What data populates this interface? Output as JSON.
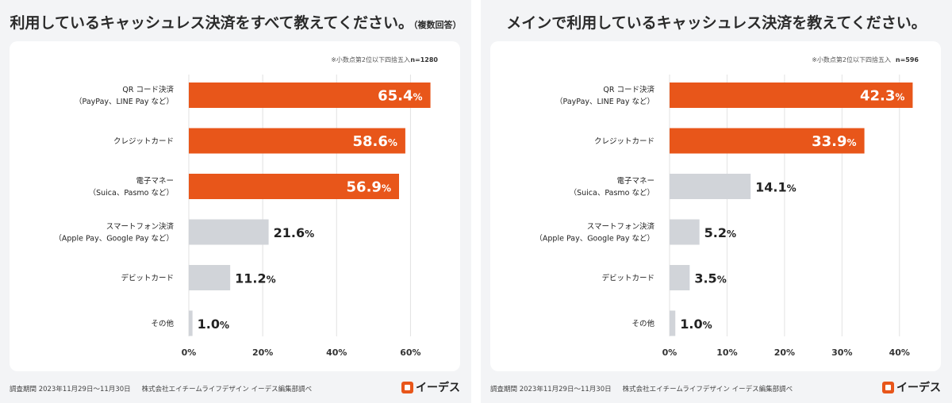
{
  "brand": {
    "name": "イーデス",
    "icon": "edesu-logo-icon",
    "accent": "#e8561a",
    "gray": "#d1d4d9"
  },
  "footer": {
    "period": "調査期間 2023年11月29日〜11月30日",
    "source": "株式会社エイチームライフデザイン イーデス編集部調べ"
  },
  "panels": [
    {
      "title": "利用しているキャッシュレス決済をすべて教えてください。",
      "subtitle": "（複数回答）",
      "note": "※小数点第2位以下四捨五入",
      "n": "n=1280"
    },
    {
      "title": "メインで利用しているキャッシュレス決済を教えてください。",
      "subtitle": "",
      "note": "※小数点第2位以下四捨五入",
      "n": "n=596"
    }
  ],
  "chart_data": [
    {
      "type": "bar",
      "orientation": "horizontal",
      "categories": [
        [
          "QR コード決済",
          "（PayPay、LINE Pay など）"
        ],
        [
          "クレジットカード"
        ],
        [
          "電子マネー",
          "（Suica、Pasmo など）"
        ],
        [
          "スマートフォン決済",
          "（Apple Pay、Google Pay など）"
        ],
        [
          "デビットカード"
        ],
        [
          "その他"
        ]
      ],
      "values": [
        65.4,
        58.6,
        56.9,
        21.6,
        11.2,
        1.0
      ],
      "highlight": [
        true,
        true,
        true,
        false,
        false,
        false
      ],
      "value_labels": [
        "65.4",
        "58.6",
        "56.9",
        "21.6",
        "11.2",
        "1.0"
      ],
      "unit": "%",
      "xlim": [
        0,
        70
      ],
      "ticks": [
        0,
        20,
        40,
        60
      ],
      "tick_labels": [
        "0%",
        "20%",
        "40%",
        "60%"
      ],
      "grid": true
    },
    {
      "type": "bar",
      "orientation": "horizontal",
      "categories": [
        [
          "QR コード決済",
          "（PayPay、LINE Pay など）"
        ],
        [
          "クレジットカード"
        ],
        [
          "電子マネー",
          "（Suica、Pasmo など）"
        ],
        [
          "スマートフォン決済",
          "（Apple Pay、Google Pay など）"
        ],
        [
          "デビットカード"
        ],
        [
          "その他"
        ]
      ],
      "values": [
        42.3,
        33.9,
        14.1,
        5.2,
        3.5,
        1.0
      ],
      "highlight": [
        true,
        true,
        false,
        false,
        false,
        false
      ],
      "value_labels": [
        "42.3",
        "33.9",
        "14.1",
        "5.2",
        "3.5",
        "1.0"
      ],
      "unit": "%",
      "xlim": [
        0,
        45
      ],
      "ticks": [
        0,
        10,
        20,
        30,
        40
      ],
      "tick_labels": [
        "0%",
        "10%",
        "20%",
        "30%",
        "40%"
      ],
      "grid": true
    }
  ]
}
